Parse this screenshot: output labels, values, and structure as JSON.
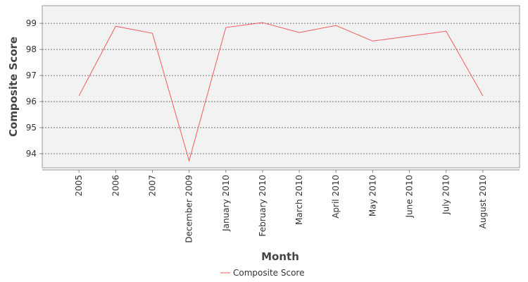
{
  "chart_data": {
    "type": "line",
    "x_label": "Month",
    "y_label": "Composite Score",
    "categories": [
      "2005",
      "2006",
      "2007",
      "December 2009",
      "January 2010",
      "February 2010",
      "March 2010",
      "April 2010",
      "May 2010",
      "June 2010",
      "July 2010",
      "August 2010"
    ],
    "series": [
      {
        "name": "Composite Score",
        "color": "#f25b5b",
        "values": [
          96.22,
          98.89,
          98.62,
          93.73,
          98.84,
          99.03,
          98.65,
          98.92,
          98.32,
          98.51,
          98.7,
          96.22
        ]
      }
    ],
    "ylim": [
      93.46,
      99.68
    ],
    "yticks": [
      94,
      95,
      96,
      97,
      98,
      99
    ],
    "grid": true,
    "legend": "bottom"
  }
}
